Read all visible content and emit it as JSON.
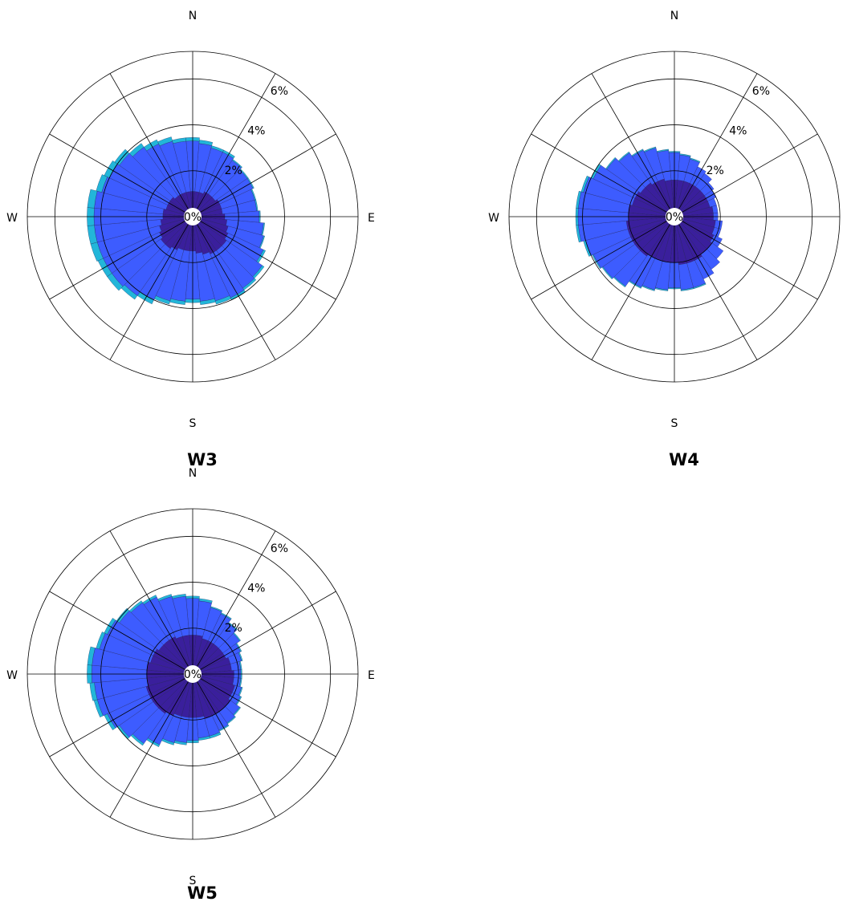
{
  "chart_data": [
    {
      "type": "windrose",
      "title": "W3",
      "directions": [
        "N",
        "E",
        "S",
        "W"
      ],
      "radial_ticks": [
        "0%",
        "2%",
        "4%",
        "6%"
      ],
      "rmax": 7.2,
      "sectors": 36,
      "colors": [
        "#3a1f9c",
        "#3d5cff",
        "#22b6d9"
      ],
      "series": [
        {
          "values": [
            1.1,
            1.1,
            1.1,
            1.2,
            1.2,
            1.2,
            1.3,
            1.3,
            1.3,
            1.4,
            1.5,
            1.6,
            1.7,
            1.8,
            1.8,
            1.8,
            1.7,
            1.6,
            1.5,
            1.5,
            1.5,
            1.6,
            1.7,
            1.7,
            1.6,
            1.5,
            1.4,
            1.3,
            1.3,
            1.2,
            1.2,
            1.2,
            1.1,
            1.1,
            1.1,
            1.1
          ]
        },
        {
          "values": [
            2.2,
            2.1,
            2.0,
            1.9,
            1.8,
            1.7,
            1.6,
            1.5,
            1.5,
            1.5,
            1.6,
            1.6,
            1.7,
            1.9,
            2.0,
            2.1,
            2.1,
            2.1,
            2.1,
            2.2,
            2.3,
            2.4,
            2.5,
            2.6,
            2.7,
            2.8,
            2.9,
            3.0,
            3.0,
            2.9,
            2.8,
            2.7,
            2.6,
            2.4,
            2.3,
            2.2
          ]
        },
        {
          "values": [
            0.15,
            0.15,
            0.1,
            0.1,
            0.05,
            0.05,
            0.05,
            0.05,
            0.05,
            0.05,
            0.05,
            0.05,
            0.1,
            0.1,
            0.1,
            0.1,
            0.15,
            0.15,
            0.15,
            0.15,
            0.15,
            0.2,
            0.2,
            0.25,
            0.25,
            0.3,
            0.3,
            0.3,
            0.3,
            0.25,
            0.25,
            0.25,
            0.2,
            0.2,
            0.2,
            0.15
          ]
        }
      ]
    },
    {
      "type": "windrose",
      "title": "W4",
      "directions": [
        "N",
        "E",
        "S",
        "W"
      ],
      "radial_ticks": [
        "0%",
        "2%",
        "4%",
        "6%"
      ],
      "rmax": 7.2,
      "sectors": 36,
      "colors": [
        "#3a1f9c",
        "#3d5cff",
        "#22b6d9"
      ],
      "series": [
        {
          "values": [
            1.6,
            1.6,
            1.6,
            1.6,
            1.6,
            1.6,
            1.6,
            1.6,
            1.7,
            1.7,
            1.8,
            1.8,
            1.9,
            2.0,
            2.0,
            2.1,
            2.1,
            2.1,
            2.0,
            2.0,
            2.0,
            2.0,
            2.1,
            2.1,
            2.1,
            2.1,
            2.1,
            2.0,
            2.0,
            1.9,
            1.9,
            1.8,
            1.8,
            1.7,
            1.7,
            1.6
          ]
        },
        {
          "values": [
            1.2,
            1.1,
            1.0,
            0.8,
            0.7,
            0.5,
            0.4,
            0.3,
            0.2,
            0.2,
            0.3,
            0.3,
            0.4,
            0.6,
            0.8,
            0.9,
            1.1,
            1.1,
            1.1,
            1.2,
            1.3,
            1.4,
            1.6,
            1.7,
            1.8,
            1.9,
            2.1,
            2.2,
            2.2,
            2.2,
            2.0,
            1.8,
            1.6,
            1.5,
            1.4,
            1.3
          ]
        },
        {
          "values": [
            0.05,
            0.05,
            0.05,
            0,
            0,
            0,
            0,
            0,
            0,
            0,
            0,
            0,
            0,
            0,
            0,
            0,
            0.05,
            0.05,
            0.05,
            0.05,
            0.05,
            0.05,
            0.05,
            0.05,
            0.05,
            0.1,
            0.1,
            0.1,
            0.1,
            0.1,
            0.1,
            0.05,
            0.05,
            0.05,
            0.05,
            0.05
          ]
        }
      ]
    },
    {
      "type": "windrose",
      "title": "W5",
      "directions": [
        "N",
        "E",
        "S",
        "W"
      ],
      "radial_ticks": [
        "0%",
        "2%",
        "4%",
        "6%"
      ],
      "rmax": 7.2,
      "sectors": 36,
      "colors": [
        "#3a1f9c",
        "#3d5cff",
        "#22b6d9"
      ],
      "series": [
        {
          "values": [
            1.7,
            1.7,
            1.6,
            1.6,
            1.6,
            1.6,
            1.6,
            1.7,
            1.7,
            1.8,
            1.8,
            1.9,
            1.9,
            2.0,
            2.0,
            2.0,
            2.0,
            1.9,
            1.9,
            1.9,
            1.9,
            2.0,
            2.1,
            2.1,
            2.1,
            2.1,
            2.0,
            2.0,
            2.0,
            1.9,
            1.9,
            1.8,
            1.8,
            1.8,
            1.7,
            1.7
          ]
        },
        {
          "values": [
            1.6,
            1.5,
            1.4,
            1.3,
            1.1,
            0.9,
            0.7,
            0.5,
            0.4,
            0.3,
            0.3,
            0.3,
            0.4,
            0.5,
            0.6,
            0.7,
            0.8,
            0.9,
            1.0,
            1.1,
            1.2,
            1.4,
            1.6,
            1.8,
            2.0,
            2.2,
            2.3,
            2.4,
            2.4,
            2.3,
            2.2,
            2.1,
            2.0,
            1.9,
            1.8,
            1.7
          ]
        },
        {
          "values": [
            0.1,
            0.1,
            0.05,
            0.05,
            0.05,
            0.05,
            0.05,
            0.05,
            0.05,
            0.05,
            0.05,
            0.05,
            0.05,
            0.05,
            0.05,
            0.05,
            0.1,
            0.1,
            0.1,
            0.1,
            0.1,
            0.1,
            0.1,
            0.1,
            0.15,
            0.15,
            0.2,
            0.2,
            0.2,
            0.15,
            0.15,
            0.15,
            0.1,
            0.1,
            0.1,
            0.1
          ]
        }
      ]
    }
  ]
}
